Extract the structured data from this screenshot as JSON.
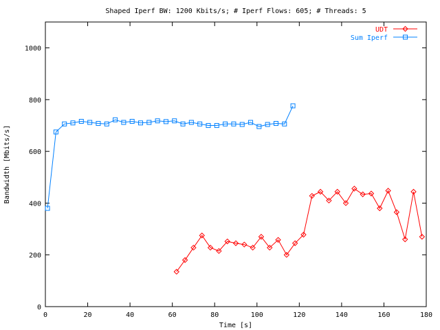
{
  "chart_data": {
    "type": "line",
    "title": "Shaped Iperf BW: 1200 Kbits/s; # Iperf Flows: 605; # Threads: 5",
    "xlabel": "Time [s]",
    "ylabel": "Bandwidth [Mbits/s]",
    "xlim": [
      0,
      180
    ],
    "ylim": [
      0,
      1100
    ],
    "x_ticks": [
      0,
      20,
      40,
      60,
      80,
      100,
      120,
      140,
      160,
      180
    ],
    "y_ticks": [
      0,
      200,
      400,
      600,
      800,
      1000
    ],
    "grid": false,
    "legend": "top-right",
    "series": [
      {
        "name": "UDT",
        "color": "#ff0000",
        "marker": "diamond",
        "x": [
          62,
          66,
          70,
          74,
          78,
          82,
          86,
          90,
          94,
          98,
          102,
          106,
          110,
          114,
          118,
          122,
          126,
          130,
          134,
          138,
          142,
          146,
          150,
          154,
          158,
          162,
          166,
          170,
          174,
          178
        ],
        "y": [
          135,
          180,
          228,
          275,
          228,
          215,
          252,
          245,
          240,
          228,
          270,
          228,
          258,
          200,
          245,
          278,
          428,
          444,
          410,
          444,
          400,
          456,
          434,
          437,
          380,
          448,
          365,
          260,
          444,
          270
        ]
      },
      {
        "name": "Sum Iperf",
        "color": "#0080ff",
        "marker": "square",
        "x": [
          1,
          5,
          9,
          13,
          17,
          21,
          25,
          29,
          33,
          37,
          41,
          45,
          49,
          53,
          57,
          61,
          65,
          69,
          73,
          77,
          81,
          85,
          89,
          93,
          97,
          101,
          105,
          109,
          113,
          117
        ],
        "y": [
          380,
          675,
          706,
          710,
          716,
          712,
          708,
          706,
          722,
          712,
          716,
          710,
          712,
          718,
          715,
          718,
          706,
          712,
          706,
          700,
          700,
          706,
          706,
          704,
          712,
          696,
          704,
          708,
          706,
          776
        ]
      }
    ]
  }
}
